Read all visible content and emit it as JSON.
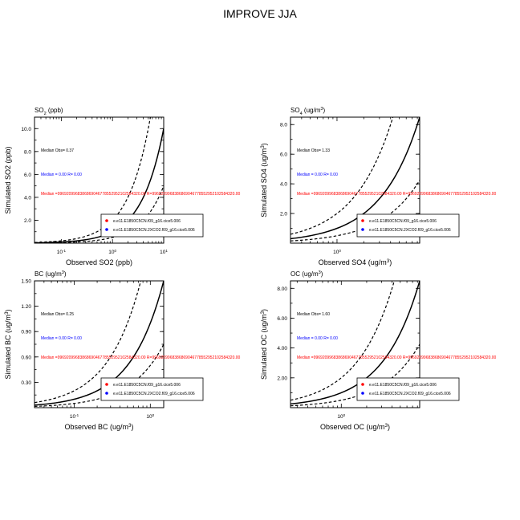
{
  "page": {
    "title": "IMPROVE JJA"
  },
  "colors": {
    "case1": "#ff0000",
    "case2": "#0000ff",
    "median_case1": "#ff0000",
    "median_case2": "#0000ff"
  },
  "chart_data": [
    {
      "type": "scatter",
      "panel_title": "SO2 (ppb)",
      "xlabel": "Observed SO2 (ppb)",
      "ylabel": "Simulated SO2 (ppb)",
      "xscale": "log",
      "yscale": "linear",
      "xlim": [
        0.03,
        10
      ],
      "ylim": [
        0,
        11
      ],
      "xticks": [
        {
          "v": 0.1,
          "label": "10-1"
        },
        {
          "v": 1,
          "label": "100"
        },
        {
          "v": 10,
          "label": "101"
        }
      ],
      "yticks": [
        {
          "v": 2,
          "label": "2.0"
        },
        {
          "v": 4,
          "label": "4.0"
        },
        {
          "v": 6,
          "label": "6.0"
        },
        {
          "v": 8,
          "label": "8.0"
        },
        {
          "v": 10,
          "label": "10.0"
        }
      ],
      "median_obs": "Median Obs= 0.37",
      "median_case2": "Median = 0.00 R= 0.00",
      "median_case1": "Median =9969209968386869046778552952102584320.00 R=9969209968386869046778552952102584320.00",
      "legend": [
        "e.e11.E1850C5CN.f09_g16.cice5.006",
        "e.e11.E1850C5CN.2XCO2.f09_g16.cice5.006"
      ],
      "legend_position": "bottom-right",
      "series": []
    },
    {
      "type": "scatter",
      "panel_title": "SO4 (ug/m3)",
      "xlabel": "Observed SO4 (ug/m3)",
      "ylabel": "Simulated SO4 (ug/m3)",
      "xscale": "log",
      "yscale": "linear",
      "xlim": [
        0.3,
        8.5
      ],
      "ylim": [
        0,
        8.5
      ],
      "xticks": [
        {
          "v": 1,
          "label": "100"
        }
      ],
      "yticks": [
        {
          "v": 2,
          "label": "2.0"
        },
        {
          "v": 4,
          "label": "4.0"
        },
        {
          "v": 6,
          "label": "6.0"
        },
        {
          "v": 8,
          "label": "8.0"
        }
      ],
      "median_obs": "Median Obs= 1.33",
      "median_case2": "Median = 0.00 R= 0.00",
      "median_case1": "Median =9969209968386869046778552952102584320.00 R=9969209968386869046778552952102584320.00",
      "legend": [
        "e.e11.E1850C5CN.f09_g16.cice5.006",
        "e.e11.E1850C5CN.2XCO2.f09_g16.cice5.006"
      ],
      "legend_position": "bottom-right",
      "series": []
    },
    {
      "type": "scatter",
      "panel_title": "BC (ug/m3)",
      "xlabel": "Observed BC (ug/m3)",
      "ylabel": "Simulated BC (ug/m3)",
      "xscale": "log",
      "yscale": "linear",
      "xlim": [
        0.03,
        1.5
      ],
      "ylim": [
        0,
        1.5
      ],
      "xticks": [
        {
          "v": 0.1,
          "label": "10-1"
        },
        {
          "v": 1,
          "label": "100"
        }
      ],
      "yticks": [
        {
          "v": 0.3,
          "label": "0.30"
        },
        {
          "v": 0.6,
          "label": "0.60"
        },
        {
          "v": 0.9,
          "label": "0.90"
        },
        {
          "v": 1.2,
          "label": "1.20"
        },
        {
          "v": 1.5,
          "label": "1.50"
        }
      ],
      "median_obs": "Median Obs= 0.25",
      "median_case2": "Median = 0.00 R= 0.00",
      "median_case1": "Median =9969209968386869046778552952102584320.00 R=9969209968386869046778552952102584320.00",
      "legend": [
        "e.e11.E1850C5CN.f09_g16.cice5.006",
        "e.e11.E1850C5CN.2XCO2.f09_g16.cice5.006"
      ],
      "legend_position": "bottom-right",
      "series": []
    },
    {
      "type": "scatter",
      "panel_title": "OC (ug/m3)",
      "xlabel": "Observed OC (ug/m3)",
      "ylabel": "Simulated OC (ug/m3)",
      "xscale": "log",
      "yscale": "linear",
      "xlim": [
        0.25,
        8.5
      ],
      "ylim": [
        0,
        8.5
      ],
      "xticks": [
        {
          "v": 1,
          "label": "100"
        }
      ],
      "yticks": [
        {
          "v": 2,
          "label": "2.00"
        },
        {
          "v": 4,
          "label": "4.00"
        },
        {
          "v": 6,
          "label": "6.00"
        },
        {
          "v": 8,
          "label": "8.00"
        }
      ],
      "median_obs": "Median Obs= 1.60",
      "median_case2": "Median = 0.00 R= 0.00",
      "median_case1": "Median =9969209968386869046778552952102584320.00 R=9969209968386869046778552952102584320.00",
      "legend": [
        "e.e11.E1850C5CN.f09_g16.cice5.006",
        "e.e11.E1850C5CN.2XCO2.f09_g16.cice5.006"
      ],
      "legend_position": "bottom-right",
      "series": []
    }
  ]
}
